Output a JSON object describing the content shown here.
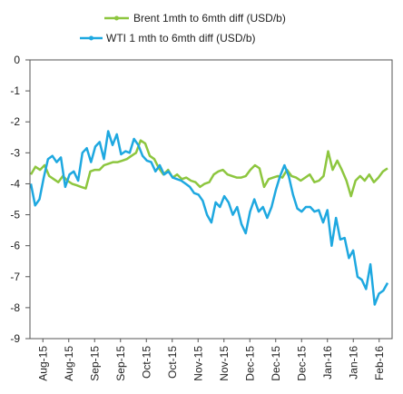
{
  "chart_data": {
    "type": "line",
    "title": "",
    "xlabel": "",
    "ylabel": "",
    "ylim": [
      -9,
      0
    ],
    "y_ticks": [
      0,
      -1,
      -2,
      -3,
      -4,
      -5,
      -6,
      -7,
      -8,
      -9
    ],
    "x_tick_labels": [
      "Aug-15",
      "Aug-15",
      "Sep-15",
      "Sep-15",
      "Oct-15",
      "Oct-15",
      "Nov-15",
      "Nov-15",
      "Dec-15",
      "Dec-15",
      "Dec-15",
      "Jan-16",
      "Jan-16",
      "Feb-16"
    ],
    "legend_position": "top-right",
    "grid": false,
    "series": [
      {
        "name": "Brent 1mth to 6mth diff (USD/b)",
        "color": "#8dc63f",
        "values": [
          -3.7,
          -3.45,
          -3.55,
          -3.4,
          -3.75,
          -3.85,
          -3.95,
          -3.75,
          -3.9,
          -4.0,
          -4.05,
          -4.1,
          -4.15,
          -3.6,
          -3.55,
          -3.55,
          -3.4,
          -3.35,
          -3.3,
          -3.3,
          -3.25,
          -3.2,
          -3.1,
          -3.0,
          -2.6,
          -2.7,
          -3.1,
          -3.2,
          -3.5,
          -3.7,
          -3.55,
          -3.8,
          -3.7,
          -3.85,
          -3.8,
          -3.9,
          -3.95,
          -4.1,
          -4.0,
          -3.95,
          -3.7,
          -3.6,
          -3.55,
          -3.7,
          -3.75,
          -3.8,
          -3.8,
          -3.75,
          -3.55,
          -3.4,
          -3.5,
          -4.1,
          -3.85,
          -3.8,
          -3.75,
          -3.8,
          -3.55,
          -3.75,
          -3.8,
          -3.9,
          -3.8,
          -3.7,
          -3.95,
          -3.9,
          -3.75,
          -2.95,
          -3.55,
          -3.25,
          -3.55,
          -3.9,
          -4.4,
          -3.9,
          -3.75,
          -3.9,
          -3.7,
          -3.95,
          -3.8,
          -3.6,
          -3.5
        ]
      },
      {
        "name": "WTI 1 mth to 6mth diff (USD/b)",
        "color": "#1ea8e0",
        "values": [
          -4.0,
          -4.7,
          -4.5,
          -3.8,
          -3.2,
          -3.1,
          -3.3,
          -3.15,
          -4.1,
          -3.7,
          -3.6,
          -3.9,
          -3.0,
          -2.85,
          -3.3,
          -2.8,
          -2.65,
          -3.2,
          -2.3,
          -2.75,
          -2.4,
          -3.05,
          -2.95,
          -3.0,
          -2.55,
          -2.75,
          -3.1,
          -3.25,
          -3.3,
          -3.6,
          -3.4,
          -3.7,
          -3.6,
          -3.8,
          -3.85,
          -3.9,
          -4.0,
          -4.1,
          -4.3,
          -4.35,
          -4.55,
          -5.0,
          -5.25,
          -4.6,
          -4.75,
          -4.4,
          -4.6,
          -5.0,
          -4.75,
          -5.3,
          -5.6,
          -4.9,
          -4.5,
          -4.9,
          -4.75,
          -5.1,
          -4.75,
          -4.2,
          -3.75,
          -3.4,
          -3.75,
          -4.35,
          -4.8,
          -4.9,
          -4.75,
          -4.75,
          -4.9,
          -4.85,
          -5.25,
          -4.85,
          -6.0,
          -5.1,
          -5.8,
          -5.75,
          -6.4,
          -6.15,
          -7.0,
          -7.1,
          -7.4,
          -6.6,
          -7.9,
          -7.55,
          -7.45,
          -7.2
        ]
      }
    ]
  }
}
